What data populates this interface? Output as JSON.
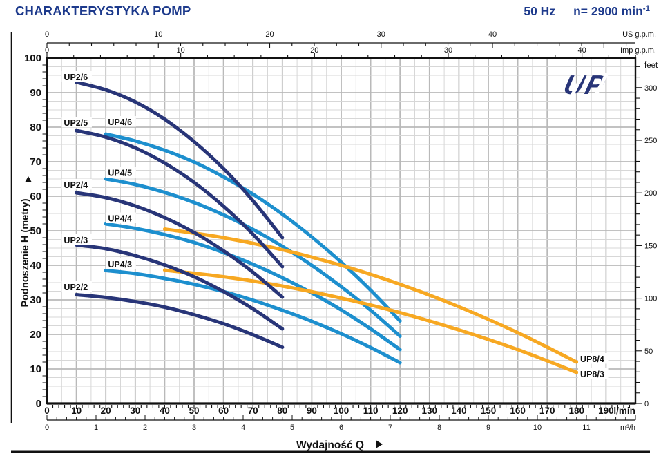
{
  "header": {
    "title": "CHARAKTERYSTYKA POMP",
    "frequency": "50 Hz",
    "speed_prefix": "n= 2900 min",
    "speed_exponent": "-1"
  },
  "logo": {
    "text": "UP"
  },
  "colors": {
    "heading_blue": "#1d3a8c",
    "navy": "#283578",
    "lightblue": "#1d8fce",
    "orange": "#f7a822",
    "grid_minor": "#d7d7d7",
    "grid_major": "#b9b9b9",
    "axis_black": "#111111"
  },
  "chart_data": {
    "type": "line",
    "title": "CHARAKTERYSTYKA POMP",
    "xlabel": "Wydajność Q",
    "ylabel": "Podnoszenie H  (metry)",
    "x_range_lmin": [
      0,
      200
    ],
    "y_range_m": [
      0,
      100
    ],
    "grid": "on",
    "x_axes": [
      {
        "id": "us_gpm",
        "label": "US g.p.m.",
        "ticks": [
          0,
          10,
          20,
          30,
          40
        ],
        "minor_step": 2
      },
      {
        "id": "imp_gpm",
        "label": "Imp g.p.m.",
        "ticks": [
          0,
          10,
          20,
          30,
          40
        ],
        "minor_step": 2
      },
      {
        "id": "lmin",
        "label": "l/min",
        "ticks": [
          0,
          10,
          20,
          30,
          40,
          50,
          60,
          70,
          80,
          90,
          100,
          110,
          120,
          130,
          140,
          150,
          160,
          170,
          180,
          190
        ],
        "minor_step": 2
      },
      {
        "id": "m3h",
        "label": "m³/h",
        "ticks": [
          0,
          1,
          2,
          3,
          4,
          5,
          6,
          7,
          8,
          9,
          10,
          11
        ],
        "minor_step": 0.2
      }
    ],
    "y_axes": [
      {
        "id": "metry",
        "label": "Podnoszenie H  (metry)",
        "ticks": [
          0,
          10,
          20,
          30,
          40,
          50,
          60,
          70,
          80,
          90,
          100
        ],
        "minor_step": 2
      },
      {
        "id": "feet",
        "label": "feet",
        "ticks": [
          0,
          50,
          100,
          150,
          200,
          250,
          300
        ],
        "minor_step": 10
      }
    ],
    "series": [
      {
        "name": "UP2/6",
        "family": "UP2",
        "color": "#283578",
        "label_pos": [
          5.5,
          94.6
        ],
        "points": [
          [
            10,
            93
          ],
          [
            20,
            90.8
          ],
          [
            30,
            87.3
          ],
          [
            40,
            82.3
          ],
          [
            50,
            75.8
          ],
          [
            60,
            68.0
          ],
          [
            70,
            58.7
          ],
          [
            80,
            48.0
          ]
        ]
      },
      {
        "name": "UP2/5",
        "family": "UP2",
        "color": "#283578",
        "label_pos": [
          5.5,
          81.4
        ],
        "points": [
          [
            10,
            79
          ],
          [
            20,
            77.1
          ],
          [
            30,
            74.0
          ],
          [
            40,
            69.6
          ],
          [
            50,
            64.0
          ],
          [
            60,
            57.1
          ],
          [
            70,
            49.0
          ],
          [
            80,
            39.6
          ]
        ]
      },
      {
        "name": "UP2/4",
        "family": "UP2",
        "color": "#283578",
        "label_pos": [
          5.5,
          63.4
        ],
        "points": [
          [
            10,
            61
          ],
          [
            20,
            59.6
          ],
          [
            30,
            57.2
          ],
          [
            40,
            53.8
          ],
          [
            50,
            49.5
          ],
          [
            60,
            44.2
          ],
          [
            70,
            38.0
          ],
          [
            80,
            30.8
          ]
        ]
      },
      {
        "name": "UP2/3",
        "family": "UP2",
        "color": "#283578",
        "label_pos": [
          5.5,
          47.4
        ],
        "points": [
          [
            10,
            45.9
          ],
          [
            20,
            44.8
          ],
          [
            30,
            42.8
          ],
          [
            40,
            40.1
          ],
          [
            50,
            36.7
          ],
          [
            60,
            32.4
          ],
          [
            70,
            27.4
          ],
          [
            80,
            21.6
          ]
        ]
      },
      {
        "name": "UP2/2",
        "family": "UP2",
        "color": "#283578",
        "label_pos": [
          5.5,
          33.8
        ],
        "points": [
          [
            10,
            31.5
          ],
          [
            20,
            30.7
          ],
          [
            30,
            29.5
          ],
          [
            40,
            27.9
          ],
          [
            50,
            25.7
          ],
          [
            60,
            23.1
          ],
          [
            70,
            19.9
          ],
          [
            80,
            16.3
          ]
        ]
      },
      {
        "name": "UP4/6",
        "family": "UP4",
        "color": "#1d8fce",
        "label_pos": [
          20.5,
          81.6
        ],
        "points": [
          [
            20,
            78
          ],
          [
            30,
            76.0
          ],
          [
            40,
            73.3
          ],
          [
            50,
            69.9
          ],
          [
            60,
            65.6
          ],
          [
            70,
            60.6
          ],
          [
            80,
            54.8
          ],
          [
            90,
            48.2
          ],
          [
            100,
            40.9
          ],
          [
            110,
            32.8
          ],
          [
            120,
            23.9
          ]
        ]
      },
      {
        "name": "UP4/5",
        "family": "UP4",
        "color": "#1d8fce",
        "label_pos": [
          20.5,
          66.9
        ],
        "points": [
          [
            20,
            65
          ],
          [
            30,
            63.4
          ],
          [
            40,
            61.1
          ],
          [
            50,
            58.2
          ],
          [
            60,
            54.6
          ],
          [
            70,
            50.4
          ],
          [
            80,
            45.5
          ],
          [
            90,
            40.0
          ],
          [
            100,
            33.8
          ],
          [
            110,
            27.0
          ],
          [
            120,
            19.5
          ]
        ]
      },
      {
        "name": "UP4/4",
        "family": "UP4",
        "color": "#1d8fce",
        "label_pos": [
          20.5,
          53.7
        ],
        "points": [
          [
            20,
            52
          ],
          [
            30,
            50.7
          ],
          [
            40,
            48.9
          ],
          [
            50,
            46.6
          ],
          [
            60,
            43.7
          ],
          [
            70,
            40.3
          ],
          [
            80,
            36.4
          ],
          [
            90,
            32.0
          ],
          [
            100,
            27.1
          ],
          [
            110,
            21.6
          ],
          [
            120,
            15.6
          ]
        ]
      },
      {
        "name": "UP4/3",
        "family": "UP4",
        "color": "#1d8fce",
        "label_pos": [
          20.5,
          40.4
        ],
        "points": [
          [
            20,
            38.5
          ],
          [
            30,
            37.6
          ],
          [
            40,
            36.2
          ],
          [
            50,
            34.5
          ],
          [
            60,
            32.4
          ],
          [
            70,
            29.9
          ],
          [
            80,
            27.0
          ],
          [
            90,
            23.8
          ],
          [
            100,
            20.2
          ],
          [
            110,
            16.2
          ],
          [
            120,
            11.8
          ]
        ]
      },
      {
        "name": "UP8/4",
        "family": "UP8",
        "color": "#f7a822",
        "label_pos": [
          181,
          13.0
        ],
        "points": [
          [
            40,
            50.5
          ],
          [
            60,
            48.0
          ],
          [
            80,
            44.5
          ],
          [
            100,
            40.0
          ],
          [
            120,
            34.5
          ],
          [
            140,
            28.0
          ],
          [
            160,
            20.5
          ],
          [
            180,
            12.0
          ]
        ]
      },
      {
        "name": "UP8/3",
        "family": "UP8",
        "color": "#f7a822",
        "label_pos": [
          181,
          8.6
        ],
        "points": [
          [
            40,
            38.6
          ],
          [
            60,
            36.7
          ],
          [
            80,
            34.0
          ],
          [
            100,
            30.5
          ],
          [
            120,
            26.3
          ],
          [
            140,
            21.3
          ],
          [
            160,
            15.6
          ],
          [
            180,
            9.0
          ]
        ]
      }
    ]
  }
}
